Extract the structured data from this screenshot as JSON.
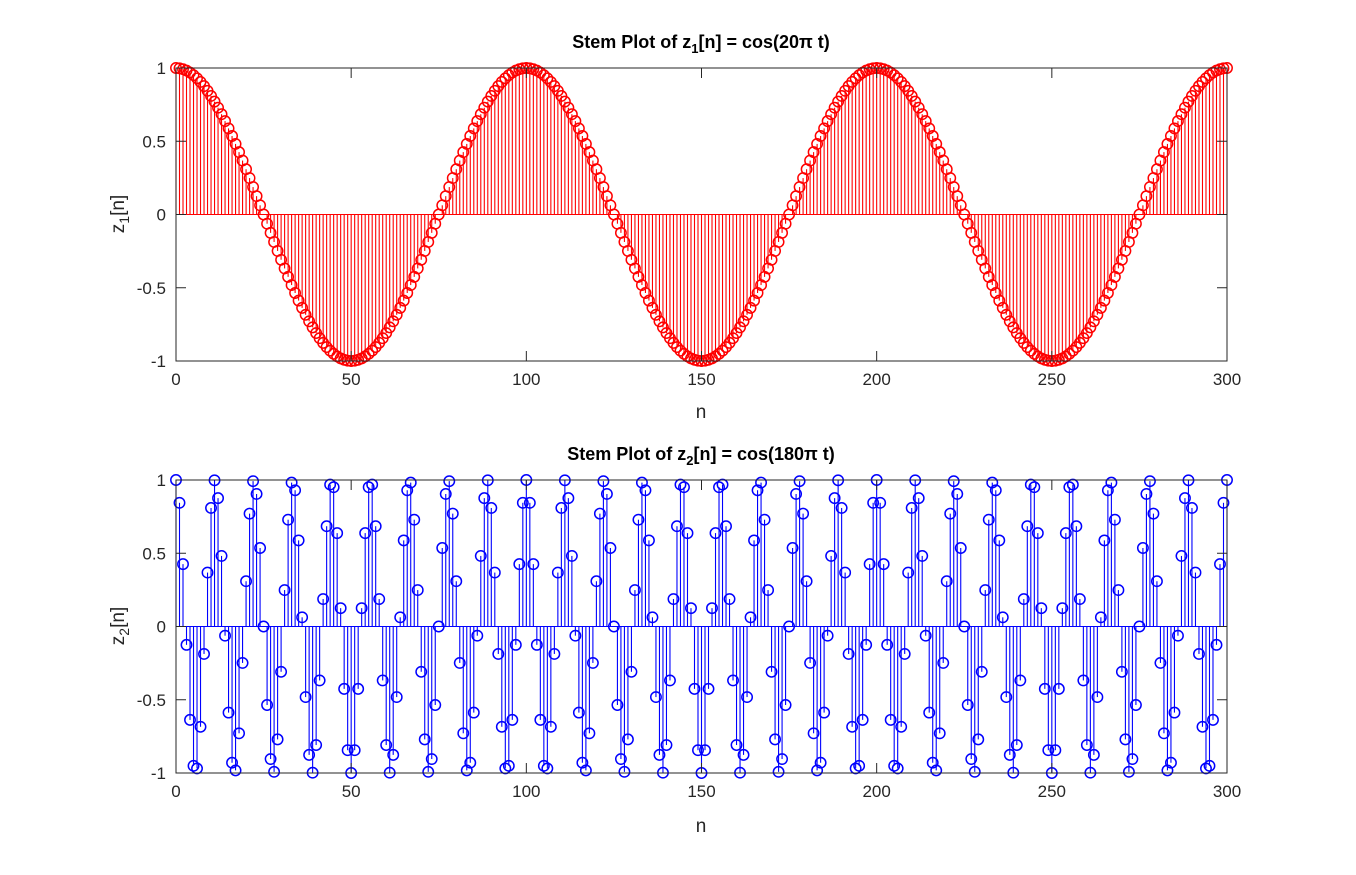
{
  "figure": {
    "background": "#ffffff"
  },
  "chart_data": [
    {
      "type": "stem",
      "title": {
        "pre": "Stem Plot of z",
        "sub": "1",
        "post": "[n] = cos(20π t)"
      },
      "xlabel": "n",
      "ylabel": {
        "base": "z",
        "sub": "1",
        "post": "[n]"
      },
      "xlim": [
        0,
        300
      ],
      "ylim": [
        -1,
        1
      ],
      "xticks": [
        0,
        50,
        100,
        150,
        200,
        250,
        300
      ],
      "yticks": [
        -1,
        -0.5,
        0,
        0.5,
        1
      ],
      "ytick_labels": [
        "-1",
        "-0.5",
        "0",
        "0.5",
        "1"
      ],
      "grid": false,
      "marker": "circle",
      "color": "#ff0000",
      "formula": "cos(2*pi*n/100)",
      "n_range": [
        0,
        300
      ]
    },
    {
      "type": "stem",
      "title": {
        "pre": "Stem Plot of z",
        "sub": "2",
        "post": "[n] = cos(180π t)"
      },
      "xlabel": "n",
      "ylabel": {
        "base": "z",
        "sub": "2",
        "post": "[n]"
      },
      "xlim": [
        0,
        300
      ],
      "ylim": [
        -1,
        1
      ],
      "xticks": [
        0,
        50,
        100,
        150,
        200,
        250,
        300
      ],
      "yticks": [
        -1,
        -0.5,
        0,
        0.5,
        1
      ],
      "ytick_labels": [
        "-1",
        "-0.5",
        "0",
        "0.5",
        "1"
      ],
      "grid": false,
      "marker": "circle",
      "color": "#0000ff",
      "formula": "cos(2*pi*9*n/100)",
      "n_range": [
        0,
        300
      ]
    }
  ]
}
